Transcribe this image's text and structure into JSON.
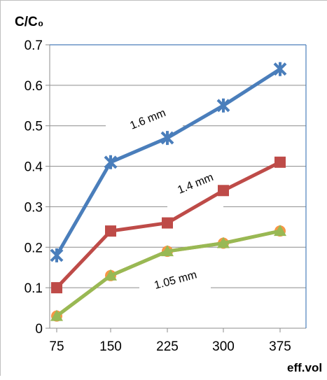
{
  "chart_data": {
    "type": "line",
    "x": [
      75,
      150,
      225,
      300,
      375
    ],
    "categories": [
      "75",
      "150",
      "225",
      "300",
      "375"
    ],
    "ylabel": "C/C₀",
    "xlabel": "eff.vol",
    "ylim": [
      0,
      0.7
    ],
    "yticks": [
      "0",
      "0.1",
      "0.2",
      "0.3",
      "0.4",
      "0.5",
      "0.6",
      "0.7"
    ],
    "grid": "horizontal gridlines",
    "series": [
      {
        "name": "1.6 mm",
        "values": [
          0.18,
          0.41,
          0.47,
          0.55,
          0.64
        ],
        "color": "#4a7ebb",
        "marker": "star",
        "marker_color": "#4a7ebb"
      },
      {
        "name": "1.4 mm",
        "values": [
          0.1,
          0.24,
          0.26,
          0.34,
          0.41
        ],
        "color": "#be4b48",
        "marker": "square",
        "marker_color": "#be4b48"
      },
      {
        "name": "",
        "values": [
          0.03,
          0.13,
          0.19,
          0.21,
          0.24
        ],
        "color": "#f79646",
        "marker": "circle",
        "marker_color": "#f79646"
      },
      {
        "name": "1.05 mm",
        "values": [
          0.03,
          0.13,
          0.19,
          0.21,
          0.24
        ],
        "color": "#98b954",
        "marker": "triangle",
        "marker_color": "#98b954"
      }
    ]
  }
}
